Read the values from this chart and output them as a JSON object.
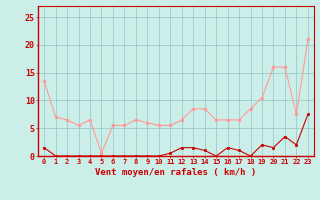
{
  "x": [
    0,
    1,
    2,
    3,
    4,
    5,
    6,
    7,
    8,
    9,
    10,
    11,
    12,
    13,
    14,
    15,
    16,
    17,
    18,
    19,
    20,
    21,
    22,
    23
  ],
  "y_rafales": [
    13.5,
    7.0,
    6.5,
    5.5,
    6.5,
    0.5,
    5.5,
    5.5,
    6.5,
    6.0,
    5.5,
    5.5,
    6.5,
    8.5,
    8.5,
    6.5,
    6.5,
    6.5,
    8.5,
    10.5,
    16.0,
    16.0,
    7.5,
    21.0
  ],
  "y_moyen": [
    1.5,
    0.0,
    0.0,
    0.0,
    0.0,
    0.0,
    0.0,
    0.0,
    0.0,
    0.0,
    0.0,
    0.5,
    1.5,
    1.5,
    1.0,
    0.0,
    1.5,
    1.0,
    0.0,
    2.0,
    1.5,
    3.5,
    2.0,
    7.5
  ],
  "xlim": [
    -0.5,
    23.5
  ],
  "ylim": [
    0,
    27
  ],
  "yticks": [
    0,
    5,
    10,
    15,
    20,
    25
  ],
  "xticks": [
    0,
    1,
    2,
    3,
    4,
    5,
    6,
    7,
    8,
    9,
    10,
    11,
    12,
    13,
    14,
    15,
    16,
    17,
    18,
    19,
    20,
    21,
    22,
    23
  ],
  "xlabel": "Vent moyen/en rafales ( km/h )",
  "background_color": "#cceee8",
  "line_color_rafales": "#ff9999",
  "line_color_moyen": "#cc0000",
  "grid_color": "#99cccc",
  "text_color": "#cc0000",
  "tick_fontsize": 5,
  "xlabel_fontsize": 6.5
}
